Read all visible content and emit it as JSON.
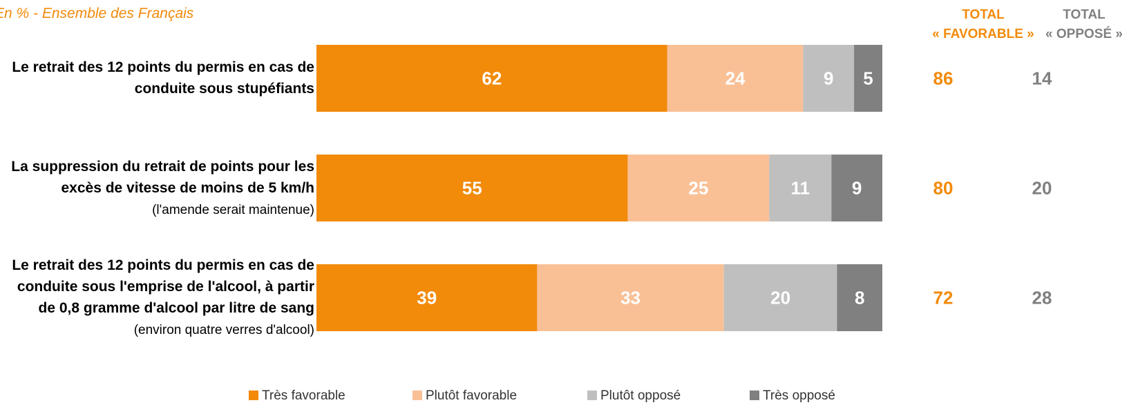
{
  "subtitle": "En % - Ensemble des Français",
  "totals_header": {
    "favorable_line1": "TOTAL",
    "favorable_line2": "« FAVORABLE »",
    "oppose_line1": "TOTAL",
    "oppose_line2": "« OPPOSÉ »"
  },
  "colors": {
    "tres_favorable": "#f28a0a",
    "plutot_favorable": "#f9c096",
    "plutot_oppose": "#bfbfbf",
    "tres_oppose": "#808080",
    "total_favorable_text": "#f28a0a",
    "total_oppose_text": "#808080"
  },
  "rows": [
    {
      "label_bold": "Le retrait des 12 points du permis en cas de conduite sous stupéfiants",
      "label_normal": ""
    },
    {
      "label_bold": "La suppression du retrait de points pour les excès de vitesse de moins de 5 km/h",
      "label_normal": "(l'amende serait maintenue)"
    },
    {
      "label_bold": "Le retrait des 12 points du permis en cas de conduite sous l'emprise de l'alcool, à partir de 0,8 gramme d'alcool par litre de sang",
      "label_normal": "(environ quatre verres d'alcool)"
    }
  ],
  "chart_data": {
    "type": "bar",
    "orientation": "horizontal",
    "stacked": true,
    "unit": "%",
    "xlim": [
      0,
      100
    ],
    "grid": false,
    "legend_position": "bottom",
    "categories": [
      "Le retrait des 12 points du permis en cas de conduite sous stupéfiants",
      "La suppression du retrait de points pour les excès de vitesse de moins de 5 km/h (l'amende serait maintenue)",
      "Le retrait des 12 points du permis en cas de conduite sous l'emprise de l'alcool, à partir de 0,8 gramme d'alcool par litre de sang (environ quatre verres d'alcool)"
    ],
    "series": [
      {
        "name": "Très favorable",
        "values": [
          62,
          55,
          39
        ]
      },
      {
        "name": "Plutôt favorable",
        "values": [
          24,
          25,
          33
        ]
      },
      {
        "name": "Plutôt opposé",
        "values": [
          9,
          11,
          20
        ]
      },
      {
        "name": "Très opposé",
        "values": [
          5,
          9,
          8
        ]
      }
    ],
    "totals": {
      "favorable": [
        86,
        80,
        72
      ],
      "oppose": [
        14,
        20,
        28
      ]
    }
  }
}
